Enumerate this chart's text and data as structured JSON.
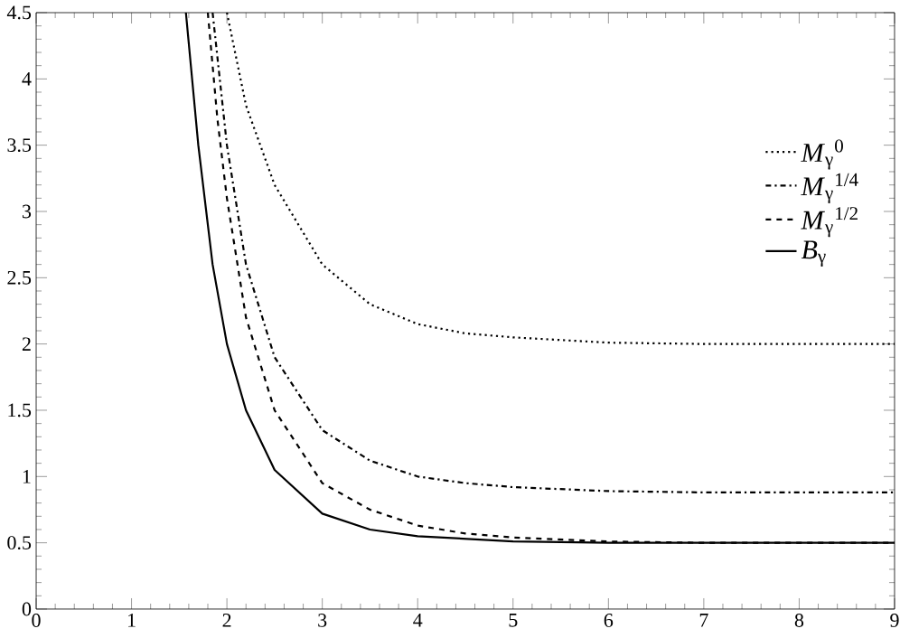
{
  "chart_data": {
    "type": "line",
    "xlim": [
      0,
      9
    ],
    "ylim": [
      0,
      4.5
    ],
    "xticks": [
      0,
      1,
      2,
      3,
      4,
      5,
      6,
      7,
      8,
      9
    ],
    "yticks": [
      0,
      0.5,
      1,
      1.5,
      2,
      2.5,
      3,
      3.5,
      4,
      4.5
    ],
    "grid": false,
    "legend": "right",
    "marker": "none",
    "series": [
      {
        "name": "*M*$_{γ}$$^{0}$",
        "color": "#000000",
        "line_style": "dotted",
        "x": [
          2.0,
          2.2,
          2.5,
          3,
          3.5,
          4,
          4.5,
          5,
          6,
          7,
          9
        ],
        "values": [
          4.5,
          3.8,
          3.2,
          2.6,
          2.3,
          2.15,
          2.08,
          2.05,
          2.01,
          2.0,
          2.0
        ]
      },
      {
        "name": "*M*$_{γ}$$^{1/4}$",
        "color": "#000000",
        "line_style": "dashdot",
        "x": [
          1.85,
          2,
          2.2,
          2.5,
          3,
          3.5,
          4,
          4.5,
          5,
          6,
          7,
          9
        ],
        "values": [
          4.5,
          3.5,
          2.6,
          1.9,
          1.35,
          1.12,
          1.0,
          0.95,
          0.92,
          0.89,
          0.88,
          0.88
        ]
      },
      {
        "name": "*M*$_{γ}$$^{1/2}$",
        "color": "#000000",
        "line_style": "dashed",
        "x": [
          1.8,
          1.9,
          2,
          2.2,
          2.5,
          3,
          3.5,
          4,
          4.5,
          5,
          6,
          7,
          9
        ],
        "values": [
          4.5,
          3.7,
          3.1,
          2.2,
          1.5,
          0.95,
          0.75,
          0.63,
          0.57,
          0.54,
          0.51,
          0.5,
          0.5
        ]
      },
      {
        "name": "*B*$_{γ}$",
        "color": "#000000",
        "line_style": "solid",
        "x": [
          1.57,
          1.7,
          1.85,
          2,
          2.2,
          2.5,
          3,
          3.5,
          4,
          5,
          6,
          9
        ],
        "values": [
          4.5,
          3.5,
          2.6,
          2.0,
          1.5,
          1.05,
          0.72,
          0.6,
          0.55,
          0.51,
          0.5,
          0.5
        ]
      }
    ]
  }
}
